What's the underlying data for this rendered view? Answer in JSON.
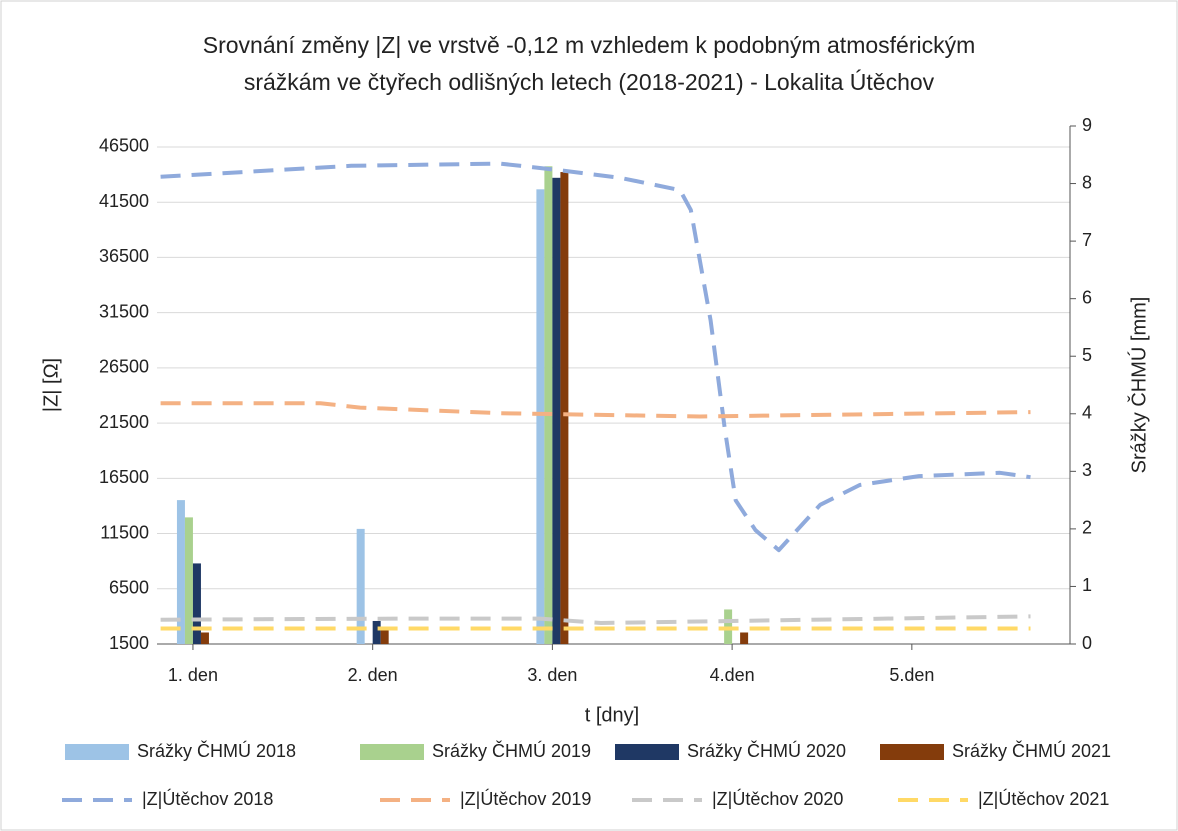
{
  "chart_data": {
    "type": "combo",
    "title": [
      "Srovnání změny |Z| ve vrstvě -0,12 m  vzhledem k podobným atmosférickým",
      "srážkám ve čtyřech odlišných letech (2018-2021) - Lokalita Útěchov"
    ],
    "x_label": "t [dny]",
    "y_label": "|Z| [Ω]",
    "y2_label": "Srážky ČHMÚ [mm]",
    "xlim": [
      0.8,
      5.88
    ],
    "xticks": [
      {
        "value": 1,
        "label": "1. den"
      },
      {
        "value": 2,
        "label": "2. den"
      },
      {
        "value": 3,
        "label": "3. den"
      },
      {
        "value": 4,
        "label": "4.den"
      },
      {
        "value": 5,
        "label": "5.den"
      }
    ],
    "ylim": [
      1500,
      48400
    ],
    "yticks": [
      1500,
      6500,
      11500,
      16500,
      21500,
      26500,
      31500,
      36500,
      41500,
      46500
    ],
    "y2lim": [
      0,
      9
    ],
    "y2ticks": [
      0,
      1,
      2,
      3,
      4,
      5,
      6,
      7,
      8,
      9
    ],
    "grid": true,
    "legend": "bottom",
    "series": [
      {
        "name": "Srážky ČHMÚ 2018",
        "type": "bar",
        "axis": "y2",
        "color": "#9dc3e6",
        "x": [
          1,
          2,
          3,
          4
        ],
        "values": [
          2.5,
          2.0,
          7.9,
          0
        ]
      },
      {
        "name": "Srážky ČHMÚ 2019",
        "type": "bar",
        "axis": "y2",
        "color": "#a9d18e",
        "x": [
          1,
          2,
          3,
          4
        ],
        "values": [
          2.2,
          0,
          8.3,
          0.6
        ]
      },
      {
        "name": "Srážky ČHMÚ 2020",
        "type": "bar",
        "axis": "y2",
        "color": "#1f3864",
        "x": [
          1,
          2,
          3,
          4
        ],
        "values": [
          1.4,
          0.4,
          8.1,
          0
        ]
      },
      {
        "name": "Srážky ČHMÚ 2021",
        "type": "bar",
        "axis": "y2",
        "color": "#843c0c",
        "x": [
          1,
          2,
          3,
          4
        ],
        "values": [
          0.2,
          0.3,
          8.2,
          0.2
        ]
      },
      {
        "name": "|Z|Útěchov  2018",
        "type": "line",
        "color": "#8faadc",
        "x": [
          0.82,
          1.88,
          2.71,
          3.04,
          3.38,
          3.71,
          3.77,
          3.88,
          3.96,
          4.02,
          4.13,
          4.26,
          4.49,
          4.71,
          5.04,
          5.49,
          5.66
        ],
        "values": [
          43800,
          44800,
          45000,
          44400,
          43700,
          42600,
          40800,
          30800,
          20900,
          14500,
          11800,
          10000,
          14100,
          15900,
          16700,
          17000,
          16600
        ]
      },
      {
        "name": "|Z|Útěchov  2019",
        "type": "line",
        "color": "#f4b183",
        "x": [
          0.82,
          1.71,
          1.93,
          2.71,
          3.82,
          5.66
        ],
        "values": [
          23300,
          23300,
          22900,
          22400,
          22100,
          22500
        ]
      },
      {
        "name": "|Z|Útěchov  2020",
        "type": "line",
        "color": "#c9c9c9",
        "x": [
          0.82,
          2.16,
          2.93,
          3.27,
          5.66
        ],
        "values": [
          3700,
          3800,
          3800,
          3400,
          4000
        ]
      },
      {
        "name": "|Z|Útěchov  2021",
        "type": "line",
        "color": "#ffd966",
        "x": [
          0.82,
          5.66
        ],
        "values": [
          2900,
          2900
        ]
      }
    ]
  }
}
